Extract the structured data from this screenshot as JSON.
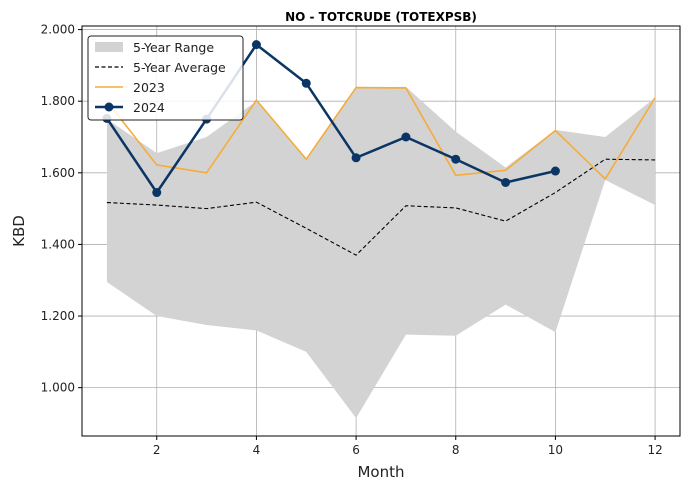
{
  "chart_data": {
    "type": "line",
    "title": "NO - TOTCRUDE (TOTEXPSB)",
    "xlabel": "Month",
    "ylabel": "KBD",
    "xlim": [
      0.5,
      12.5
    ],
    "ylim": [
      0.865,
      2.01
    ],
    "x_ticks": [
      2,
      4,
      6,
      8,
      10,
      12
    ],
    "y_ticks": [
      1.0,
      1.2,
      1.4,
      1.6,
      1.8,
      2.0
    ],
    "y_tick_labels": [
      "1.000",
      "1.200",
      "1.400",
      "1.600",
      "1.800",
      "2.000"
    ],
    "grid": true,
    "legend_position": "top-left",
    "colors": {
      "range": "#d3d3d3",
      "average": "#000000",
      "y2023": "#f5ac3a",
      "y2024": "#0b3564"
    },
    "range": {
      "name": "5-Year Range",
      "x": [
        1,
        2,
        3,
        4,
        5,
        6,
        7,
        8,
        9,
        10,
        11,
        12
      ],
      "low": [
        1.295,
        1.2,
        1.175,
        1.16,
        1.1,
        0.915,
        1.148,
        1.145,
        1.232,
        1.155,
        1.58,
        1.51
      ],
      "high": [
        1.75,
        1.655,
        1.7,
        1.8,
        1.64,
        1.84,
        1.84,
        1.715,
        1.615,
        1.72,
        1.7,
        1.81
      ]
    },
    "series": [
      {
        "name": "5-Year Average",
        "x": [
          1,
          2,
          3,
          4,
          5,
          6,
          7,
          8,
          9,
          10,
          11,
          12
        ],
        "values": [
          1.517,
          1.51,
          1.5,
          1.518,
          1.445,
          1.37,
          1.508,
          1.502,
          1.465,
          1.545,
          1.638,
          1.636
        ]
      },
      {
        "name": "2023",
        "x": [
          1,
          2,
          3,
          4,
          5,
          6,
          7,
          8,
          9,
          10,
          11,
          12
        ],
        "values": [
          1.8,
          1.622,
          1.6,
          1.803,
          1.638,
          1.838,
          1.837,
          1.593,
          1.607,
          1.718,
          1.583,
          1.81
        ]
      },
      {
        "name": "2024",
        "x": [
          1,
          2,
          3,
          4,
          5,
          6,
          7,
          8,
          9,
          10
        ],
        "values": [
          1.752,
          1.545,
          1.75,
          1.958,
          1.85,
          1.642,
          1.7,
          1.638,
          1.573,
          1.605
        ]
      }
    ]
  }
}
